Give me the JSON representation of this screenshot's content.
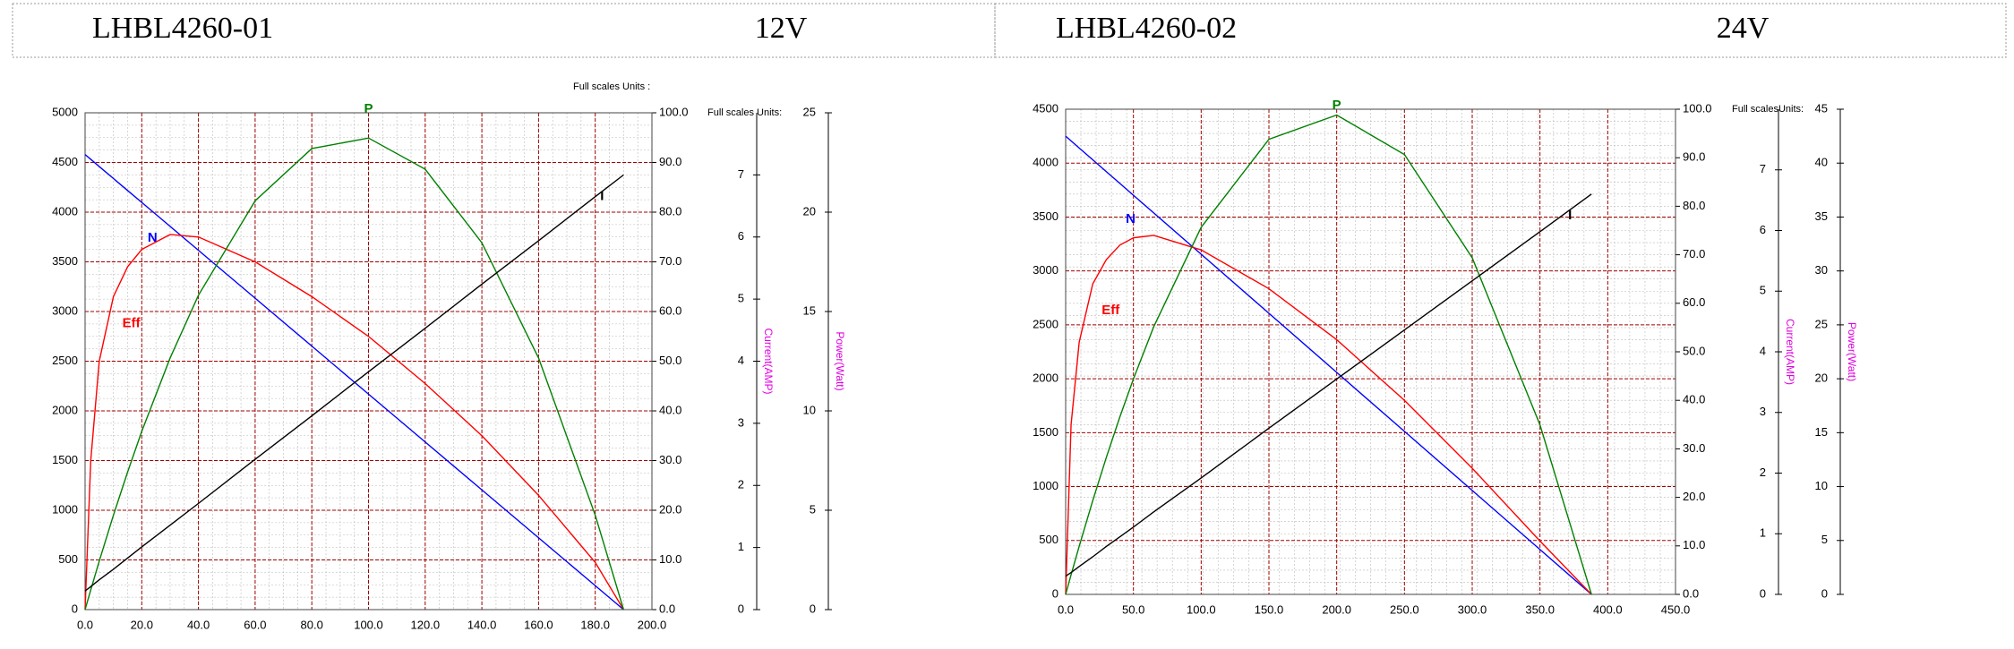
{
  "chart_data": [
    {
      "type": "line",
      "title": "LHBL4260-01",
      "voltage": "12V",
      "units_labels": [
        "Full scales Units :",
        "Full scales Units:"
      ],
      "x": [
        0,
        2,
        5,
        10,
        15,
        20,
        30,
        40,
        60,
        80,
        100,
        120,
        140,
        160,
        180,
        190
      ],
      "xlim": [
        0,
        200
      ],
      "xticks": [
        {
          "value": 0,
          "label": "0.0"
        },
        {
          "value": 20,
          "label": "20.0"
        },
        {
          "value": 40,
          "label": "40.0"
        },
        {
          "value": 60,
          "label": "60.0"
        },
        {
          "value": 80,
          "label": "80.0"
        },
        {
          "value": 100,
          "label": "100.0"
        },
        {
          "value": 120,
          "label": "120.0"
        },
        {
          "value": 140,
          "label": "140.0"
        },
        {
          "value": 160,
          "label": "160.0"
        },
        {
          "value": 180,
          "label": "180.0"
        },
        {
          "value": 200,
          "label": "200.0"
        }
      ],
      "ylim": [
        0,
        5000
      ],
      "yticks": [
        0,
        500,
        1000,
        1500,
        2000,
        2500,
        3000,
        3500,
        4000,
        4500,
        5000
      ],
      "y2lim": [
        0,
        100
      ],
      "y2ticks": [
        {
          "value": 0,
          "label": "0.0"
        },
        {
          "value": 10,
          "label": "10.0"
        },
        {
          "value": 20,
          "label": "20.0"
        },
        {
          "value": 30,
          "label": "30.0"
        },
        {
          "value": 40,
          "label": "40.0"
        },
        {
          "value": 50,
          "label": "50.0"
        },
        {
          "value": 60,
          "label": "60.0"
        },
        {
          "value": 70,
          "label": "70.0"
        },
        {
          "value": 80,
          "label": "80.0"
        },
        {
          "value": 90,
          "label": "90.0"
        },
        {
          "value": 100,
          "label": "100.0"
        }
      ],
      "y3label": "Current(AMP)",
      "y3lim": [
        0,
        8
      ],
      "y3ticks": [
        0,
        1,
        2,
        3,
        4,
        5,
        6,
        7
      ],
      "y4label": "Power(Watt)",
      "y4lim": [
        0,
        25
      ],
      "y4ticks": [
        0,
        5,
        10,
        15,
        20,
        25
      ],
      "grid": true,
      "series": [
        {
          "name": "N",
          "color": "#0000ff",
          "axis": "y",
          "values": [
            4580,
            4532,
            4459,
            4339,
            4218,
            4098,
            3857,
            3616,
            3134,
            2652,
            2169,
            1687,
            1205,
            723,
            241,
            0
          ]
        },
        {
          "name": "Eff",
          "color": "#ff0000",
          "axis": "y2",
          "values": [
            0,
            30,
            50,
            63,
            69,
            72.5,
            75.5,
            75,
            70,
            63,
            55,
            45.5,
            35,
            23,
            9.5,
            0
          ]
        },
        {
          "name": "P",
          "color": "#008000",
          "axis": "y4",
          "values": [
            0,
            0.99,
            2.44,
            4.75,
            6.92,
            8.97,
            12.66,
            15.82,
            20.57,
            23.2,
            23.73,
            22.16,
            18.46,
            12.66,
            4.75,
            0
          ]
        },
        {
          "name": "I",
          "color": "#000000",
          "axis": "y3",
          "values": [
            0.3,
            0.37,
            0.48,
            0.65,
            0.83,
            1.01,
            1.36,
            1.71,
            2.42,
            3.12,
            3.83,
            4.53,
            5.24,
            5.94,
            6.65,
            7.0
          ]
        }
      ]
    },
    {
      "type": "line",
      "title": "LHBL4260-02",
      "voltage": "24V",
      "units_labels": [
        "Full scalesUnits:"
      ],
      "x": [
        0,
        4,
        10,
        20,
        30,
        40,
        50,
        65,
        100,
        150,
        200,
        250,
        300,
        350,
        388
      ],
      "xlim": [
        0,
        450
      ],
      "xticks": [
        {
          "value": 0,
          "label": "0.0"
        },
        {
          "value": 50,
          "label": "50.0"
        },
        {
          "value": 100,
          "label": "100.0"
        },
        {
          "value": 150,
          "label": "150.0"
        },
        {
          "value": 200,
          "label": "200.0"
        },
        {
          "value": 250,
          "label": "250.0"
        },
        {
          "value": 300,
          "label": "300.0"
        },
        {
          "value": 350,
          "label": "350.0"
        },
        {
          "value": 400,
          "label": "400.0"
        },
        {
          "value": 450,
          "label": "450.0"
        }
      ],
      "ylim": [
        0,
        4500
      ],
      "yticks": [
        0,
        500,
        1000,
        1500,
        2000,
        2500,
        3000,
        3500,
        4000,
        4500
      ],
      "y2lim": [
        0,
        100
      ],
      "y2ticks": [
        {
          "value": 0,
          "label": "0.0"
        },
        {
          "value": 10,
          "label": "10.0"
        },
        {
          "value": 20,
          "label": "20.0"
        },
        {
          "value": 30,
          "label": "30.0"
        },
        {
          "value": 40,
          "label": "40.0"
        },
        {
          "value": 50,
          "label": "50.0"
        },
        {
          "value": 60,
          "label": "60.0"
        },
        {
          "value": 70,
          "label": "70.0"
        },
        {
          "value": 80,
          "label": "80.0"
        },
        {
          "value": 90,
          "label": "90.0"
        },
        {
          "value": 100,
          "label": "100.0"
        }
      ],
      "y3label": "Current(AMP)",
      "y3lim": [
        0,
        8
      ],
      "y3ticks": [
        0,
        1,
        2,
        3,
        4,
        5,
        6,
        7
      ],
      "y4label": "Power(Watt)",
      "y4lim": [
        0,
        45
      ],
      "y4ticks": [
        0,
        5,
        10,
        15,
        20,
        25,
        30,
        35,
        40,
        45
      ],
      "grid": true,
      "series": [
        {
          "name": "N",
          "color": "#0000ff",
          "axis": "y",
          "values": [
            4250,
            4206,
            4140,
            4031,
            3921,
            3812,
            3702,
            3538,
            3155,
            2607,
            2059,
            1512,
            964,
            416,
            0
          ]
        },
        {
          "name": "Eff",
          "color": "#ff0000",
          "axis": "y2",
          "values": [
            0,
            35,
            52,
            64,
            69,
            72,
            73.5,
            74,
            71,
            63,
            52.5,
            40,
            26,
            11,
            0
          ]
        },
        {
          "name": "P",
          "color": "#008000",
          "axis": "y4",
          "values": [
            0,
            1.82,
            4.47,
            8.7,
            12.7,
            16.46,
            19.98,
            24.83,
            34.05,
            42.21,
            44.46,
            40.8,
            31.22,
            15.72,
            0
          ]
        },
        {
          "name": "I",
          "color": "#000000",
          "axis": "y3",
          "values": [
            0.3,
            0.36,
            0.46,
            0.62,
            0.79,
            0.95,
            1.11,
            1.36,
            1.92,
            2.74,
            3.55,
            4.36,
            5.17,
            5.98,
            6.6
          ]
        }
      ]
    }
  ]
}
